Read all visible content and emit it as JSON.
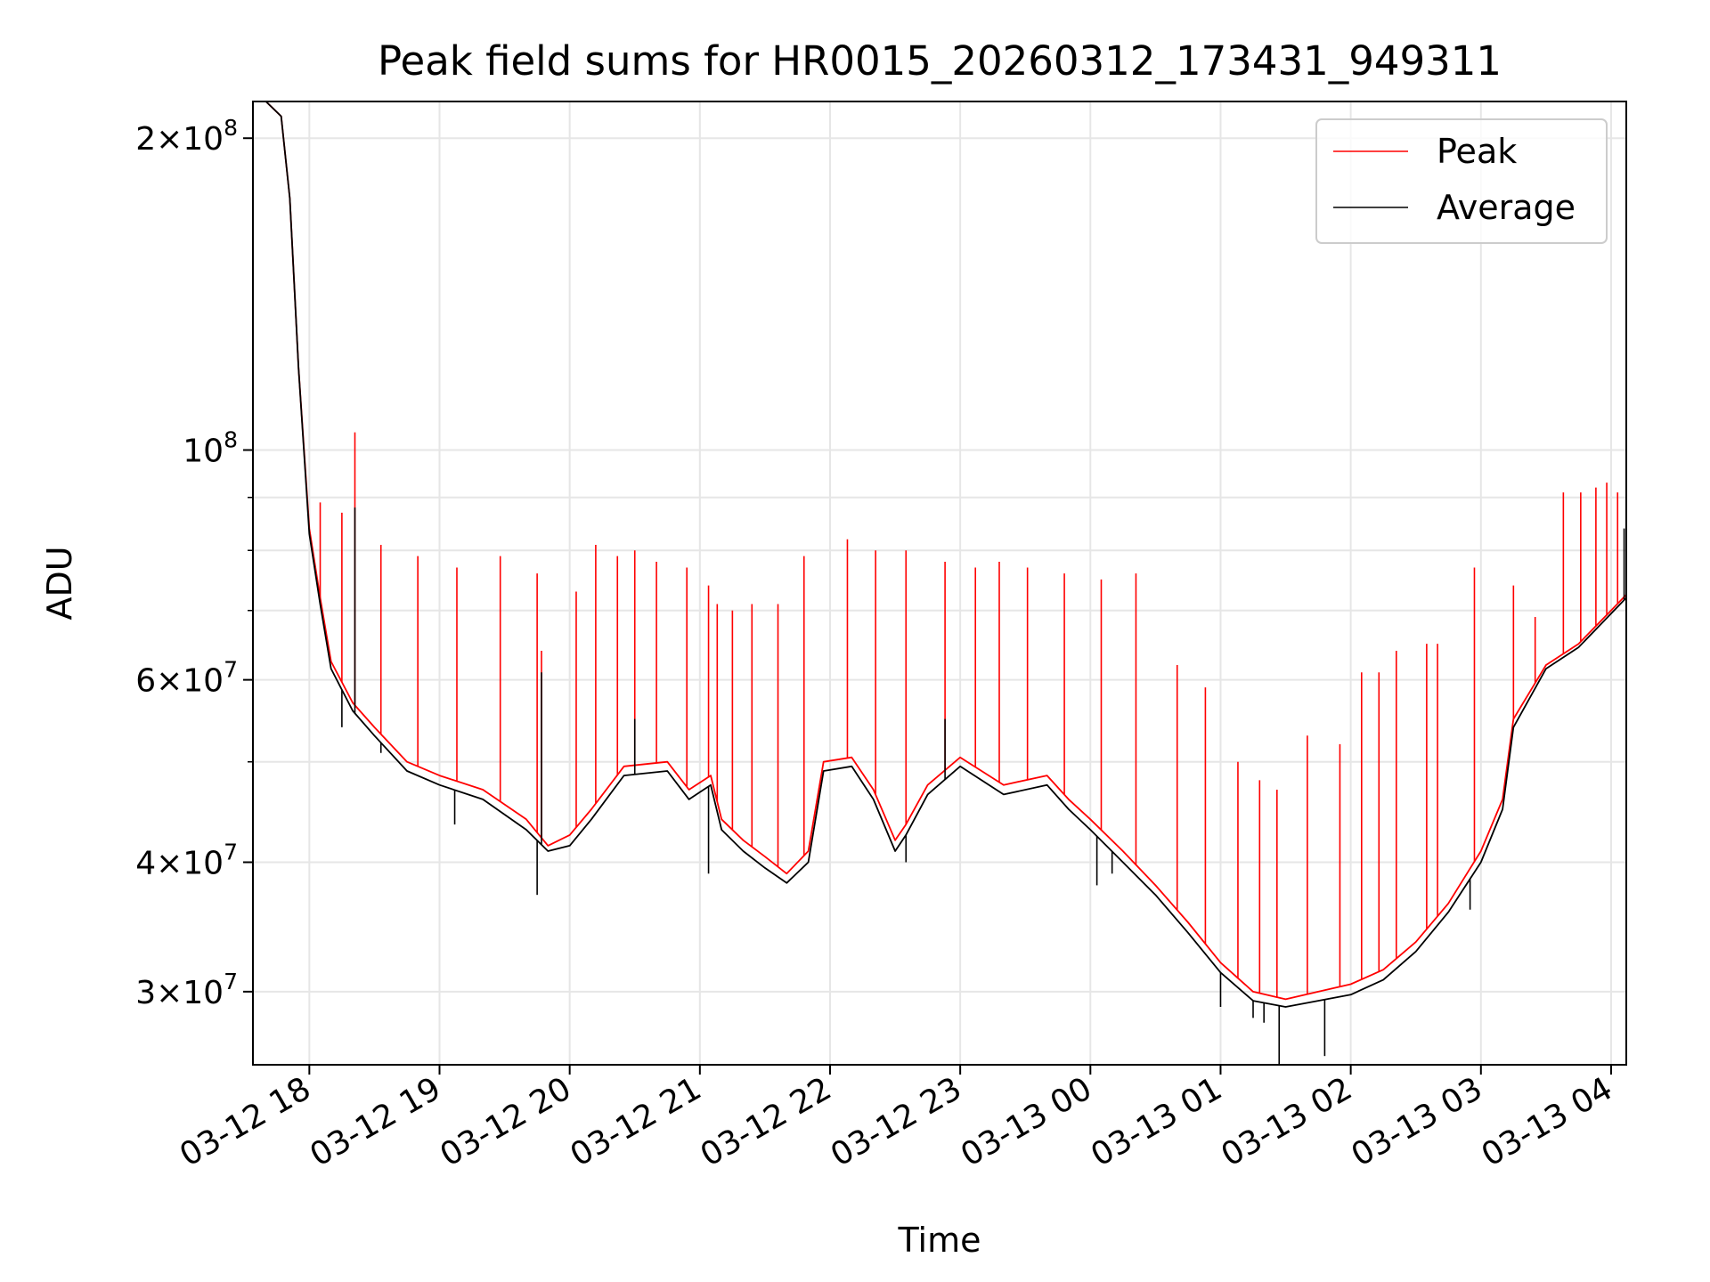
{
  "chart_data": {
    "type": "line",
    "title": "Peak field sums for HR0015_20260312_173431_949311",
    "xlabel": "Time",
    "ylabel": "ADU",
    "yscale": "log",
    "ylim": [
      25500000,
      217000000
    ],
    "xlim": [
      "2026-03-12 17:34",
      "2026-03-13 04:07"
    ],
    "grid": true,
    "legend_position": "top-right",
    "x_ticks": [
      {
        "t": "2026-03-12 18:00",
        "label": "03-12 18"
      },
      {
        "t": "2026-03-12 19:00",
        "label": "03-12 19"
      },
      {
        "t": "2026-03-12 20:00",
        "label": "03-12 20"
      },
      {
        "t": "2026-03-12 21:00",
        "label": "03-12 21"
      },
      {
        "t": "2026-03-12 22:00",
        "label": "03-12 22"
      },
      {
        "t": "2026-03-12 23:00",
        "label": "03-12 23"
      },
      {
        "t": "2026-03-13 00:00",
        "label": "03-13 00"
      },
      {
        "t": "2026-03-13 01:00",
        "label": "03-13 01"
      },
      {
        "t": "2026-03-13 02:00",
        "label": "03-13 02"
      },
      {
        "t": "2026-03-13 03:00",
        "label": "03-13 03"
      },
      {
        "t": "2026-03-13 04:00",
        "label": "03-13 04"
      }
    ],
    "y_major_ticks": [
      {
        "value": 200000000,
        "mantissa": "2",
        "exponent": "8"
      },
      {
        "value": 100000000,
        "mantissa": "",
        "exponent": "8"
      },
      {
        "value": 60000000,
        "mantissa": "6",
        "exponent": "7"
      },
      {
        "value": 40000000,
        "mantissa": "4",
        "exponent": "7"
      },
      {
        "value": 30000000,
        "mantissa": "3",
        "exponent": "7"
      }
    ],
    "y_minor_ticks": [
      90000000,
      80000000,
      70000000,
      50000000
    ],
    "series": [
      {
        "name": "Peak",
        "color": "#ff0000",
        "points": [
          [
            "2026-03-12 17:34",
            217000000
          ],
          [
            "2026-03-12 17:40",
            217000000
          ],
          [
            "2026-03-12 17:47",
            210000000
          ],
          [
            "2026-03-12 17:51",
            175000000
          ],
          [
            "2026-03-12 17:55",
            120000000
          ],
          [
            "2026-03-12 18:00",
            84000000
          ],
          [
            "2026-03-12 18:05",
            72000000
          ],
          [
            "2026-03-12 18:10",
            62500000
          ],
          [
            "2026-03-12 18:20",
            57000000
          ],
          [
            "2026-03-12 18:30",
            54000000
          ],
          [
            "2026-03-12 18:45",
            50000000
          ],
          [
            "2026-03-12 19:00",
            48500000
          ],
          [
            "2026-03-12 19:20",
            47000000
          ],
          [
            "2026-03-12 19:40",
            44000000
          ],
          [
            "2026-03-12 19:50",
            41500000
          ],
          [
            "2026-03-12 20:00",
            42500000
          ],
          [
            "2026-03-12 20:10",
            45000000
          ],
          [
            "2026-03-12 20:25",
            49500000
          ],
          [
            "2026-03-12 20:45",
            50000000
          ],
          [
            "2026-03-12 20:55",
            47000000
          ],
          [
            "2026-03-12 21:05",
            48500000
          ],
          [
            "2026-03-12 21:10",
            44000000
          ],
          [
            "2026-03-12 21:20",
            42000000
          ],
          [
            "2026-03-12 21:30",
            40500000
          ],
          [
            "2026-03-12 21:40",
            39000000
          ],
          [
            "2026-03-12 21:50",
            41000000
          ],
          [
            "2026-03-12 21:57",
            50000000
          ],
          [
            "2026-03-12 22:10",
            50500000
          ],
          [
            "2026-03-12 22:20",
            47000000
          ],
          [
            "2026-03-12 22:30",
            42000000
          ],
          [
            "2026-03-12 22:35",
            43500000
          ],
          [
            "2026-03-12 22:45",
            47500000
          ],
          [
            "2026-03-12 23:00",
            50500000
          ],
          [
            "2026-03-12 23:20",
            47500000
          ],
          [
            "2026-03-12 23:40",
            48500000
          ],
          [
            "2026-03-12 23:50",
            46000000
          ],
          [
            "2026-03-13 00:00",
            44000000
          ],
          [
            "2026-03-13 00:15",
            41000000
          ],
          [
            "2026-03-13 00:30",
            38000000
          ],
          [
            "2026-03-13 00:45",
            35000000
          ],
          [
            "2026-03-13 01:00",
            32000000
          ],
          [
            "2026-03-13 01:15",
            30000000
          ],
          [
            "2026-03-13 01:30",
            29500000
          ],
          [
            "2026-03-13 01:45",
            30000000
          ],
          [
            "2026-03-13 02:00",
            30500000
          ],
          [
            "2026-03-13 02:15",
            31500000
          ],
          [
            "2026-03-13 02:30",
            33500000
          ],
          [
            "2026-03-13 02:45",
            36500000
          ],
          [
            "2026-03-13 03:00",
            41000000
          ],
          [
            "2026-03-13 03:10",
            46000000
          ],
          [
            "2026-03-13 03:15",
            55000000
          ],
          [
            "2026-03-13 03:30",
            62000000
          ],
          [
            "2026-03-13 03:45",
            65000000
          ],
          [
            "2026-03-13 04:00",
            70000000
          ],
          [
            "2026-03-13 04:07",
            72500000
          ]
        ],
        "spikes": [
          [
            "2026-03-12 18:05",
            89000000
          ],
          [
            "2026-03-12 18:15",
            87000000
          ],
          [
            "2026-03-12 18:21",
            104000000
          ],
          [
            "2026-03-12 18:33",
            81000000
          ],
          [
            "2026-03-12 18:50",
            79000000
          ],
          [
            "2026-03-12 19:08",
            77000000
          ],
          [
            "2026-03-12 19:28",
            79000000
          ],
          [
            "2026-03-12 19:45",
            76000000
          ],
          [
            "2026-03-12 19:47",
            64000000
          ],
          [
            "2026-03-12 20:03",
            73000000
          ],
          [
            "2026-03-12 20:12",
            81000000
          ],
          [
            "2026-03-12 20:22",
            79000000
          ],
          [
            "2026-03-12 20:30",
            80000000
          ],
          [
            "2026-03-12 20:40",
            78000000
          ],
          [
            "2026-03-12 20:54",
            77000000
          ],
          [
            "2026-03-12 21:04",
            74000000
          ],
          [
            "2026-03-12 21:08",
            71000000
          ],
          [
            "2026-03-12 21:15",
            70000000
          ],
          [
            "2026-03-12 21:24",
            71000000
          ],
          [
            "2026-03-12 21:36",
            71000000
          ],
          [
            "2026-03-12 21:48",
            79000000
          ],
          [
            "2026-03-12 22:08",
            82000000
          ],
          [
            "2026-03-12 22:21",
            80000000
          ],
          [
            "2026-03-12 22:35",
            80000000
          ],
          [
            "2026-03-12 22:53",
            78000000
          ],
          [
            "2026-03-12 23:07",
            77000000
          ],
          [
            "2026-03-12 23:18",
            78000000
          ],
          [
            "2026-03-12 23:31",
            77000000
          ],
          [
            "2026-03-12 23:48",
            76000000
          ],
          [
            "2026-03-13 00:05",
            75000000
          ],
          [
            "2026-03-13 00:21",
            76000000
          ],
          [
            "2026-03-13 00:40",
            62000000
          ],
          [
            "2026-03-13 00:53",
            59000000
          ],
          [
            "2026-03-13 01:08",
            50000000
          ],
          [
            "2026-03-13 01:18",
            48000000
          ],
          [
            "2026-03-13 01:26",
            47000000
          ],
          [
            "2026-03-13 01:40",
            53000000
          ],
          [
            "2026-03-13 01:55",
            52000000
          ],
          [
            "2026-03-13 02:05",
            61000000
          ],
          [
            "2026-03-13 02:13",
            61000000
          ],
          [
            "2026-03-13 02:21",
            64000000
          ],
          [
            "2026-03-13 02:35",
            65000000
          ],
          [
            "2026-03-13 02:40",
            65000000
          ],
          [
            "2026-03-13 02:57",
            77000000
          ],
          [
            "2026-03-13 03:15",
            74000000
          ],
          [
            "2026-03-13 03:25",
            69000000
          ],
          [
            "2026-03-13 03:38",
            91000000
          ],
          [
            "2026-03-13 03:46",
            91000000
          ],
          [
            "2026-03-13 03:53",
            92000000
          ],
          [
            "2026-03-13 03:58",
            93000000
          ],
          [
            "2026-03-13 04:03",
            91000000
          ]
        ]
      },
      {
        "name": "Average",
        "color": "#000000",
        "points": [
          [
            "2026-03-12 17:34",
            217000000
          ],
          [
            "2026-03-12 17:40",
            217000000
          ],
          [
            "2026-03-12 17:47",
            210000000
          ],
          [
            "2026-03-12 17:51",
            175000000
          ],
          [
            "2026-03-12 17:55",
            120000000
          ],
          [
            "2026-03-12 18:00",
            83000000
          ],
          [
            "2026-03-12 18:05",
            71000000
          ],
          [
            "2026-03-12 18:10",
            61500000
          ],
          [
            "2026-03-12 18:20",
            56000000
          ],
          [
            "2026-03-12 18:30",
            53000000
          ],
          [
            "2026-03-12 18:45",
            49000000
          ],
          [
            "2026-03-12 19:00",
            47500000
          ],
          [
            "2026-03-12 19:20",
            46000000
          ],
          [
            "2026-03-12 19:40",
            43000000
          ],
          [
            "2026-03-12 19:50",
            41000000
          ],
          [
            "2026-03-12 20:00",
            41500000
          ],
          [
            "2026-03-12 20:10",
            44000000
          ],
          [
            "2026-03-12 20:25",
            48500000
          ],
          [
            "2026-03-12 20:45",
            49000000
          ],
          [
            "2026-03-12 20:55",
            46000000
          ],
          [
            "2026-03-12 21:05",
            47500000
          ],
          [
            "2026-03-12 21:10",
            43000000
          ],
          [
            "2026-03-12 21:20",
            41000000
          ],
          [
            "2026-03-12 21:30",
            39500000
          ],
          [
            "2026-03-12 21:40",
            38200000
          ],
          [
            "2026-03-12 21:50",
            40000000
          ],
          [
            "2026-03-12 21:57",
            49000000
          ],
          [
            "2026-03-12 22:10",
            49500000
          ],
          [
            "2026-03-12 22:20",
            46000000
          ],
          [
            "2026-03-12 22:30",
            41000000
          ],
          [
            "2026-03-12 22:35",
            42500000
          ],
          [
            "2026-03-12 22:45",
            46500000
          ],
          [
            "2026-03-12 23:00",
            49500000
          ],
          [
            "2026-03-12 23:20",
            46500000
          ],
          [
            "2026-03-12 23:40",
            47500000
          ],
          [
            "2026-03-12 23:50",
            45000000
          ],
          [
            "2026-03-13 00:00",
            43000000
          ],
          [
            "2026-03-13 00:15",
            40000000
          ],
          [
            "2026-03-13 00:30",
            37200000
          ],
          [
            "2026-03-13 00:45",
            34200000
          ],
          [
            "2026-03-13 01:00",
            31300000
          ],
          [
            "2026-03-13 01:15",
            29400000
          ],
          [
            "2026-03-13 01:30",
            29000000
          ],
          [
            "2026-03-13 01:45",
            29400000
          ],
          [
            "2026-03-13 02:00",
            29800000
          ],
          [
            "2026-03-13 02:15",
            30800000
          ],
          [
            "2026-03-13 02:30",
            32800000
          ],
          [
            "2026-03-13 02:45",
            35800000
          ],
          [
            "2026-03-13 03:00",
            40000000
          ],
          [
            "2026-03-13 03:10",
            45000000
          ],
          [
            "2026-03-13 03:15",
            54000000
          ],
          [
            "2026-03-13 03:30",
            61500000
          ],
          [
            "2026-03-13 03:45",
            64500000
          ],
          [
            "2026-03-13 04:00",
            69500000
          ],
          [
            "2026-03-13 04:07",
            72000000
          ]
        ],
        "dips": [
          [
            "2026-03-12 18:15",
            54000000
          ],
          [
            "2026-03-12 18:33",
            51000000
          ],
          [
            "2026-03-12 19:07",
            43500000
          ],
          [
            "2026-03-12 19:45",
            37200000
          ],
          [
            "2026-03-12 21:04",
            39000000
          ],
          [
            "2026-03-12 22:35",
            40000000
          ],
          [
            "2026-03-13 00:03",
            38000000
          ],
          [
            "2026-03-13 00:10",
            39000000
          ],
          [
            "2026-03-13 01:00",
            29000000
          ],
          [
            "2026-03-13 01:15",
            28300000
          ],
          [
            "2026-03-13 01:20",
            28000000
          ],
          [
            "2026-03-13 01:27",
            25500000
          ],
          [
            "2026-03-13 01:48",
            26000000
          ],
          [
            "2026-03-13 02:55",
            36000000
          ]
        ],
        "spikes": [
          [
            "2026-03-12 18:21",
            88000000
          ],
          [
            "2026-03-12 19:47",
            61000000
          ],
          [
            "2026-03-12 20:30",
            55000000
          ],
          [
            "2026-03-12 22:53",
            55000000
          ],
          [
            "2026-03-13 04:06",
            84000000
          ]
        ]
      }
    ]
  }
}
